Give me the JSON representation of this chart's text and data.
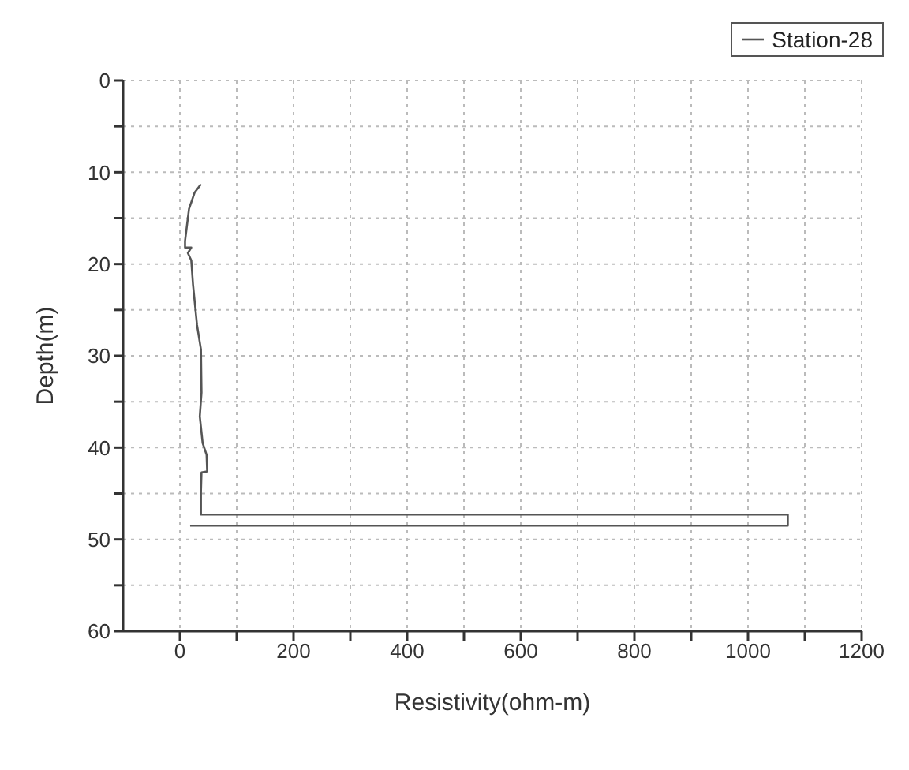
{
  "chart_data": {
    "type": "line",
    "xlabel": "Resistivity(ohm-m)",
    "ylabel": "Depth(m)",
    "legend": "top right",
    "grid": true,
    "marker": "none",
    "line_style": "solid",
    "xlim": [
      -100,
      1200
    ],
    "ylim": [
      60,
      0
    ],
    "xticks": [
      0,
      {
        "value": 100,
        "label": null
      },
      200,
      {
        "value": 300,
        "label": null
      },
      400,
      {
        "value": 500,
        "label": null
      },
      600,
      {
        "value": 700,
        "label": null
      },
      800,
      {
        "value": 900,
        "label": null
      },
      1000,
      {
        "value": 1100,
        "label": null
      },
      1200
    ],
    "yticks": [
      0,
      {
        "value": 5,
        "label": null
      },
      10,
      {
        "value": 15,
        "label": null
      },
      20,
      {
        "value": 25,
        "label": null
      },
      30,
      {
        "value": 35,
        "label": null
      },
      40,
      {
        "value": 45,
        "label": null
      },
      50,
      {
        "value": 55,
        "label": null
      },
      60
    ],
    "series": [
      {
        "name": "Station-28",
        "color": "#555555",
        "x": [
          37,
          26,
          16,
          9,
          9,
          20,
          14,
          20,
          23,
          30,
          37,
          38,
          35,
          40,
          47,
          48,
          38,
          37,
          37,
          1070,
          1070,
          18
        ],
        "values": [
          11.3,
          12.2,
          14,
          17.5,
          18.2,
          18.2,
          18.8,
          19.6,
          22.2,
          26.6,
          29.3,
          34,
          36.6,
          39.5,
          40.8,
          42.6,
          42.7,
          44.8,
          47.3,
          47.3,
          48.5,
          48.5
        ]
      }
    ]
  }
}
